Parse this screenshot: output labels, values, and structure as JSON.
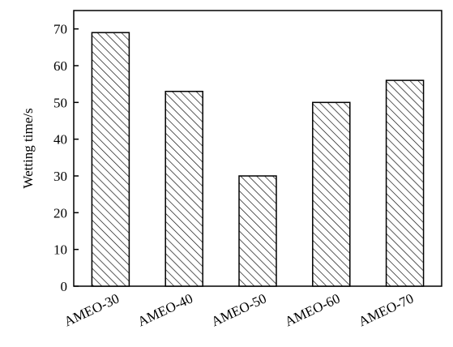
{
  "chart_data": {
    "type": "bar",
    "categories": [
      "AMEO-30",
      "AMEO-40",
      "AMEO-50",
      "AMEO-60",
      "AMEO-70"
    ],
    "values": [
      69,
      53,
      30,
      50,
      56
    ],
    "xlabel": "",
    "ylabel": "Wetting time/s",
    "ylim": [
      0,
      75
    ],
    "yticks": [
      0,
      10,
      20,
      30,
      40,
      50,
      60,
      70
    ],
    "bar_fill": "hatched diagonal",
    "bar_color": "#000000",
    "background": "#ffffff",
    "grid": false,
    "legend": "none"
  }
}
